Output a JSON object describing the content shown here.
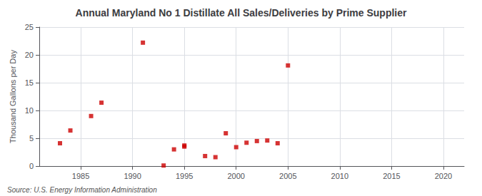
{
  "chart_data": {
    "type": "scatter",
    "title": "Annual Maryland No 1 Distillate All Sales/Deliveries by Prime Supplier",
    "ylabel": "Thousand Gallons per Day",
    "source": "Source: U.S. Energy Information Administration",
    "x": [
      1983,
      1984,
      1986,
      1987,
      1991,
      1993,
      1994,
      1995,
      1995,
      1997,
      1998,
      1999,
      2000,
      2001,
      2002,
      2003,
      2004,
      2005
    ],
    "values": [
      4.1,
      6.4,
      9.0,
      11.4,
      22.2,
      0.1,
      3.0,
      3.5,
      3.7,
      1.8,
      1.6,
      5.9,
      3.4,
      4.2,
      4.5,
      4.6,
      4.1,
      18.1
    ],
    "color": "#cc0000",
    "marker": "square",
    "xlim": [
      1981,
      2022
    ],
    "ylim": [
      0,
      25
    ],
    "xticks": [
      1985,
      1990,
      1995,
      2000,
      2005,
      2010,
      2015,
      2020
    ],
    "yticks": [
      0,
      5,
      10,
      15,
      20,
      25
    ],
    "grid": true
  }
}
